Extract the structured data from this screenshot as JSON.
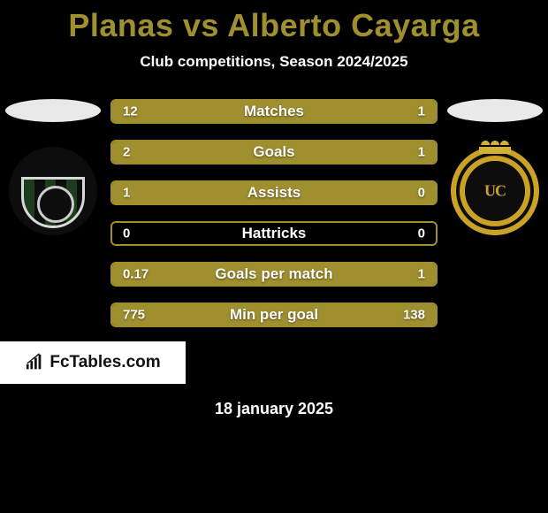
{
  "title": {
    "prefix": "Planas",
    "middle": "vs",
    "suffix": "Alberto Cayarga",
    "color": "#a08f2e"
  },
  "subtitle": "Club competitions, Season 2024/2025",
  "platform_color": "#e9e9e9",
  "left_crest_bg": "#0d0d0d",
  "right_crest_bg": "#0d0d0d",
  "bars": [
    {
      "label": "Matches",
      "left": "12",
      "right": "1",
      "left_pct": 92,
      "right_pct": 8,
      "fill": "#a08f2e",
      "border": "#a08f2e"
    },
    {
      "label": "Goals",
      "left": "2",
      "right": "1",
      "left_pct": 67,
      "right_pct": 33,
      "fill": "#a08f2e",
      "border": "#a08f2e"
    },
    {
      "label": "Assists",
      "left": "1",
      "right": "0",
      "left_pct": 100,
      "right_pct": 0,
      "fill": "#a08f2e",
      "border": "#a08f2e"
    },
    {
      "label": "Hattricks",
      "left": "0",
      "right": "0",
      "left_pct": 0,
      "right_pct": 0,
      "fill": "#a08f2e",
      "border": "#a08f2e"
    },
    {
      "label": "Goals per match",
      "left": "0.17",
      "right": "1",
      "left_pct": 15,
      "right_pct": 85,
      "fill": "#a08f2e",
      "border": "#a08f2e"
    },
    {
      "label": "Min per goal",
      "left": "775",
      "right": "138",
      "left_pct": 15,
      "right_pct": 85,
      "fill": "#a08f2e",
      "border": "#a08f2e"
    }
  ],
  "brand": "FcTables.com",
  "brand_text_color": "#111111",
  "brand_bg": "#ffffff",
  "date": "18 january 2025"
}
